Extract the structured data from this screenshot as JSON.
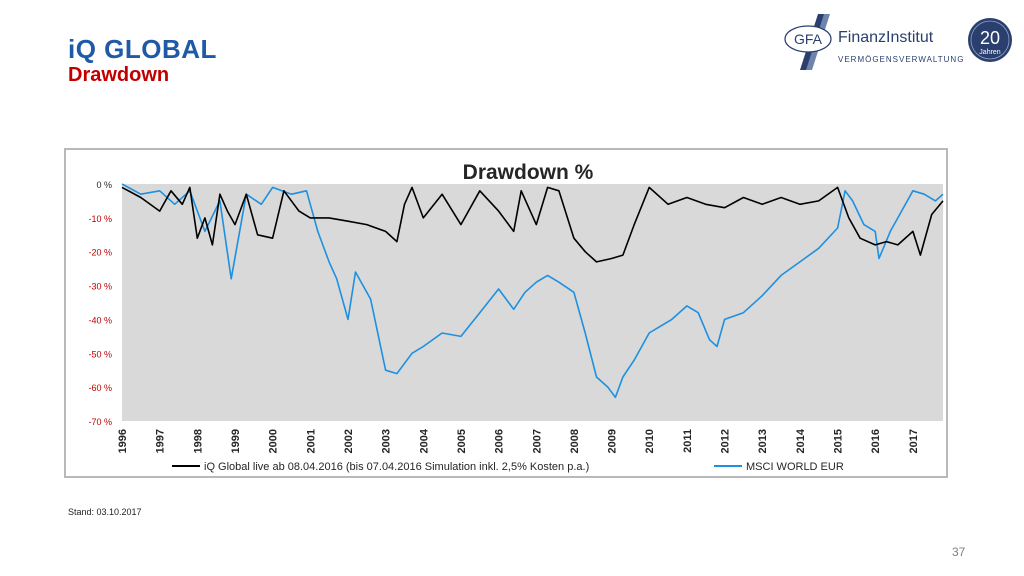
{
  "header": {
    "title": "iQ GLOBAL",
    "subtitle": "Drawdown"
  },
  "logo": {
    "mark_text": "GFA",
    "company_name": "FinanzInstitut",
    "tagline": "VERMÖGENSVERWALTUNG",
    "anniversary_number": "20",
    "anniversary_word": "Jahren"
  },
  "footer": {
    "note": "Stand: 03.10.2017",
    "page_number": "37"
  },
  "chart_data": {
    "type": "line",
    "title": "Drawdown %",
    "ylim": [
      -70,
      0
    ],
    "y_tick_labels": [
      "0 %",
      "-10 %",
      "-20 %",
      "-30 %",
      "-40 %",
      "-50 %",
      "-60 %",
      "-70 %"
    ],
    "y_tick_values": [
      0,
      -10,
      -20,
      -30,
      -40,
      -50,
      -60,
      -70
    ],
    "xlim": [
      1996,
      2017.8
    ],
    "x_tick_labels": [
      "1996",
      "1997",
      "1998",
      "1999",
      "2000",
      "2001",
      "2002",
      "2003",
      "2004",
      "2005",
      "2006",
      "2007",
      "2008",
      "2009",
      "2010",
      "2011",
      "2012",
      "2013",
      "2014",
      "2015",
      "2016",
      "2017"
    ],
    "plot_background": "#d9d9d9",
    "grid": false,
    "legend_position": "bottom",
    "series": [
      {
        "name": "iQ Global live ab 08.04.2016 (bis 07.04.2016 Simulation inkl. 2,5% Kosten p.a.)",
        "color": "#000000",
        "x": [
          1996,
          1996.5,
          1997,
          1997.3,
          1997.6,
          1997.8,
          1998,
          1998.2,
          1998.4,
          1998.6,
          1998.8,
          1999,
          1999.3,
          1999.6,
          2000,
          2000.3,
          2000.7,
          2001,
          2001.5,
          2002,
          2002.5,
          2003,
          2003.3,
          2003.5,
          2003.7,
          2004,
          2004.5,
          2005,
          2005.5,
          2006,
          2006.4,
          2006.6,
          2007,
          2007.3,
          2007.6,
          2008,
          2008.3,
          2008.6,
          2009,
          2009.3,
          2009.6,
          2010,
          2010.5,
          2011,
          2011.5,
          2012,
          2012.5,
          2013,
          2013.5,
          2014,
          2014.5,
          2015,
          2015.3,
          2015.6,
          2016,
          2016.3,
          2016.6,
          2017,
          2017.2,
          2017.5,
          2017.8
        ],
        "y": [
          -1,
          -4,
          -8,
          -2,
          -6,
          -1,
          -16,
          -10,
          -18,
          -3,
          -8,
          -12,
          -3,
          -15,
          -16,
          -2,
          -8,
          -10,
          -10,
          -11,
          -12,
          -14,
          -17,
          -6,
          -1,
          -10,
          -3,
          -12,
          -2,
          -8,
          -14,
          -2,
          -12,
          -1,
          -2,
          -16,
          -20,
          -23,
          -22,
          -21,
          -12,
          -1,
          -6,
          -4,
          -6,
          -7,
          -4,
          -6,
          -4,
          -6,
          -5,
          -1,
          -10,
          -16,
          -18,
          -17,
          -18,
          -14,
          -21,
          -9,
          -5
        ]
      },
      {
        "name": "MSCI WORLD EUR",
        "color": "#1e90e0",
        "x": [
          1996,
          1996.5,
          1997,
          1997.4,
          1997.8,
          1998.2,
          1998.6,
          1998.9,
          1999.3,
          1999.7,
          2000,
          2000.5,
          2000.9,
          2001.2,
          2001.5,
          2001.7,
          2002,
          2002.2,
          2002.6,
          2003,
          2003.3,
          2003.7,
          2004,
          2004.5,
          2005,
          2005.5,
          2006,
          2006.4,
          2006.7,
          2007,
          2007.3,
          2007.6,
          2008,
          2008.3,
          2008.6,
          2008.9,
          2009.1,
          2009.3,
          2009.6,
          2010,
          2010.3,
          2010.6,
          2011,
          2011.3,
          2011.6,
          2011.8,
          2012,
          2012.5,
          2013,
          2013.5,
          2014,
          2014.5,
          2015,
          2015.2,
          2015.4,
          2015.7,
          2016,
          2016.1,
          2016.4,
          2016.7,
          2017,
          2017.3,
          2017.6,
          2017.8
        ],
        "y": [
          0,
          -3,
          -2,
          -6,
          -2,
          -14,
          -5,
          -28,
          -3,
          -6,
          -1,
          -3,
          -2,
          -14,
          -23,
          -28,
          -40,
          -26,
          -34,
          -55,
          -56,
          -50,
          -48,
          -44,
          -45,
          -38,
          -31,
          -37,
          -32,
          -29,
          -27,
          -29,
          -32,
          -44,
          -57,
          -60,
          -63,
          -57,
          -52,
          -44,
          -42,
          -40,
          -36,
          -38,
          -46,
          -48,
          -40,
          -38,
          -33,
          -27,
          -23,
          -19,
          -13,
          -2,
          -5,
          -12,
          -14,
          -22,
          -14,
          -8,
          -2,
          -3,
          -5,
          -3
        ]
      }
    ]
  }
}
